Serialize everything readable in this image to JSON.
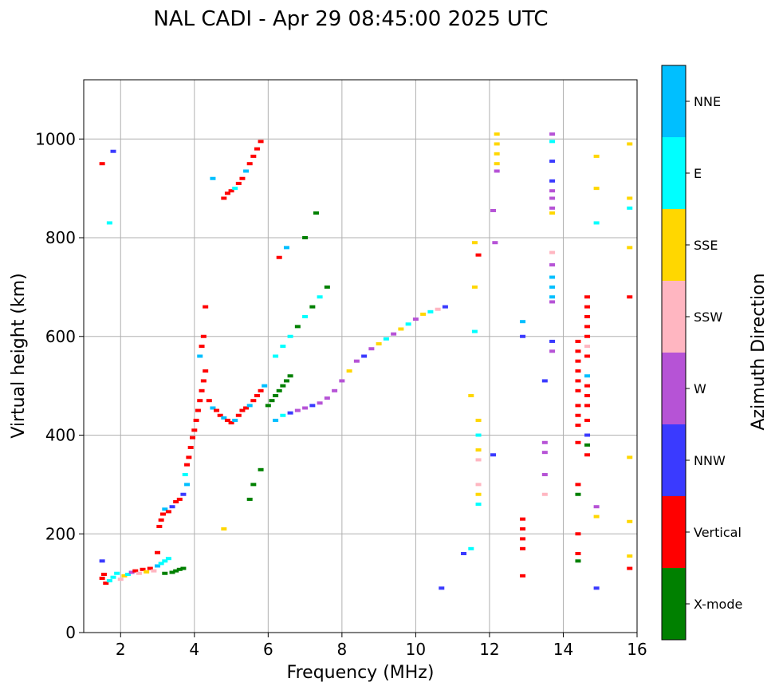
{
  "chart_data": {
    "type": "scatter",
    "title": "NAL CADI - Apr 29 08:45:00 2025 UTC",
    "xlabel": "Frequency (MHz)",
    "ylabel": "Virtual height (km)",
    "xlim": [
      1,
      16
    ],
    "ylim": [
      0,
      1120
    ],
    "xticks": [
      2,
      4,
      6,
      8,
      10,
      12,
      14,
      16
    ],
    "yticks": [
      0,
      200,
      400,
      600,
      800,
      1000
    ],
    "grid": true,
    "colorbar": {
      "label": "Azimuth Direction",
      "placement": "right",
      "categories": [
        {
          "name": "X-mode",
          "color": "#008000"
        },
        {
          "name": "Vertical",
          "color": "#ff0000"
        },
        {
          "name": "NNW",
          "color": "#3a3aff"
        },
        {
          "name": "W",
          "color": "#b653d6"
        },
        {
          "name": "SSW",
          "color": "#ffb6c1"
        },
        {
          "name": "SSE",
          "color": "#ffd700"
        },
        {
          "name": "E",
          "color": "#00ffff"
        },
        {
          "name": "NNE",
          "color": "#00bfff"
        }
      ]
    },
    "points": [
      [
        1.5,
        110,
        1
      ],
      [
        1.55,
        118,
        1
      ],
      [
        1.6,
        100,
        1
      ],
      [
        1.5,
        145,
        2
      ],
      [
        1.7,
        105,
        6
      ],
      [
        1.8,
        112,
        6
      ],
      [
        1.9,
        120,
        6
      ],
      [
        2.0,
        108,
        4
      ],
      [
        2.1,
        115,
        5
      ],
      [
        2.2,
        118,
        6
      ],
      [
        2.3,
        122,
        3
      ],
      [
        2.4,
        125,
        1
      ],
      [
        2.5,
        120,
        4
      ],
      [
        2.6,
        128,
        1
      ],
      [
        2.7,
        123,
        5
      ],
      [
        2.8,
        130,
        1
      ],
      [
        2.9,
        125,
        4
      ],
      [
        3.0,
        135,
        7
      ],
      [
        3.1,
        140,
        6
      ],
      [
        3.2,
        145,
        6
      ],
      [
        3.3,
        150,
        6
      ],
      [
        3.2,
        120,
        0
      ],
      [
        3.4,
        122,
        0
      ],
      [
        3.5,
        125,
        0
      ],
      [
        3.6,
        128,
        0
      ],
      [
        3.7,
        130,
        0
      ],
      [
        3.0,
        162,
        1
      ],
      [
        3.05,
        215,
        1
      ],
      [
        3.1,
        228,
        1
      ],
      [
        3.15,
        240,
        1
      ],
      [
        3.2,
        250,
        7
      ],
      [
        3.3,
        245,
        1
      ],
      [
        3.4,
        255,
        2
      ],
      [
        3.5,
        265,
        1
      ],
      [
        3.6,
        270,
        1
      ],
      [
        3.7,
        280,
        2
      ],
      [
        3.8,
        300,
        7
      ],
      [
        3.75,
        320,
        6
      ],
      [
        3.8,
        340,
        1
      ],
      [
        3.85,
        355,
        1
      ],
      [
        3.9,
        375,
        1
      ],
      [
        3.95,
        395,
        1
      ],
      [
        4.0,
        410,
        1
      ],
      [
        4.05,
        430,
        1
      ],
      [
        4.1,
        450,
        1
      ],
      [
        4.15,
        470,
        1
      ],
      [
        4.2,
        490,
        1
      ],
      [
        4.25,
        510,
        1
      ],
      [
        4.3,
        530,
        1
      ],
      [
        4.15,
        560,
        7
      ],
      [
        4.2,
        580,
        1
      ],
      [
        4.25,
        600,
        1
      ],
      [
        4.3,
        660,
        1
      ],
      [
        4.4,
        470,
        1
      ],
      [
        4.5,
        455,
        7
      ],
      [
        4.6,
        450,
        1
      ],
      [
        4.7,
        440,
        1
      ],
      [
        4.8,
        435,
        7
      ],
      [
        4.9,
        430,
        1
      ],
      [
        5.0,
        425,
        1
      ],
      [
        5.1,
        430,
        7
      ],
      [
        5.2,
        440,
        1
      ],
      [
        5.3,
        450,
        1
      ],
      [
        5.4,
        455,
        1
      ],
      [
        5.5,
        460,
        7
      ],
      [
        5.6,
        470,
        1
      ],
      [
        5.7,
        480,
        1
      ],
      [
        5.8,
        490,
        1
      ],
      [
        5.9,
        500,
        7
      ],
      [
        6.0,
        460,
        0
      ],
      [
        6.1,
        470,
        0
      ],
      [
        6.2,
        480,
        0
      ],
      [
        6.3,
        490,
        0
      ],
      [
        6.4,
        500,
        0
      ],
      [
        6.5,
        510,
        0
      ],
      [
        6.6,
        520,
        0
      ],
      [
        6.2,
        430,
        7
      ],
      [
        6.4,
        440,
        6
      ],
      [
        6.6,
        445,
        2
      ],
      [
        6.8,
        450,
        3
      ],
      [
        7.0,
        455,
        3
      ],
      [
        7.2,
        460,
        2
      ],
      [
        7.4,
        465,
        3
      ],
      [
        7.6,
        475,
        3
      ],
      [
        7.8,
        490,
        3
      ],
      [
        8.0,
        510,
        3
      ],
      [
        8.2,
        530,
        5
      ],
      [
        8.4,
        550,
        3
      ],
      [
        8.6,
        560,
        2
      ],
      [
        8.8,
        575,
        3
      ],
      [
        9.0,
        585,
        5
      ],
      [
        9.2,
        595,
        6
      ],
      [
        9.4,
        605,
        3
      ],
      [
        9.6,
        615,
        5
      ],
      [
        9.8,
        625,
        6
      ],
      [
        10.0,
        635,
        3
      ],
      [
        10.2,
        645,
        5
      ],
      [
        10.4,
        650,
        6
      ],
      [
        10.6,
        655,
        4
      ],
      [
        10.8,
        660,
        2
      ],
      [
        6.2,
        560,
        6
      ],
      [
        6.4,
        580,
        6
      ],
      [
        6.6,
        600,
        6
      ],
      [
        6.8,
        620,
        0
      ],
      [
        7.0,
        640,
        6
      ],
      [
        7.2,
        660,
        0
      ],
      [
        7.4,
        680,
        6
      ],
      [
        7.6,
        700,
        0
      ],
      [
        6.3,
        760,
        1
      ],
      [
        6.5,
        780,
        7
      ],
      [
        7.0,
        800,
        0
      ],
      [
        7.3,
        850,
        0
      ],
      [
        4.8,
        880,
        1
      ],
      [
        4.9,
        890,
        1
      ],
      [
        5.0,
        895,
        1
      ],
      [
        5.1,
        900,
        6
      ],
      [
        5.2,
        910,
        1
      ],
      [
        5.3,
        920,
        1
      ],
      [
        5.4,
        935,
        7
      ],
      [
        5.5,
        950,
        1
      ],
      [
        5.6,
        965,
        1
      ],
      [
        5.7,
        980,
        1
      ],
      [
        5.8,
        995,
        1
      ],
      [
        1.5,
        950,
        1
      ],
      [
        1.8,
        975,
        2
      ],
      [
        1.7,
        830,
        6
      ],
      [
        4.8,
        210,
        5
      ],
      [
        5.8,
        330,
        0
      ],
      [
        5.6,
        300,
        0
      ],
      [
        5.5,
        270,
        0
      ],
      [
        4.5,
        920,
        7
      ],
      [
        12.2,
        1010,
        5
      ],
      [
        12.2,
        990,
        5
      ],
      [
        12.2,
        970,
        5
      ],
      [
        12.2,
        950,
        5
      ],
      [
        12.2,
        935,
        3
      ],
      [
        12.1,
        855,
        3
      ],
      [
        12.15,
        790,
        3
      ],
      [
        11.6,
        790,
        5
      ],
      [
        11.7,
        765,
        1
      ],
      [
        11.6,
        700,
        5
      ],
      [
        11.6,
        610,
        6
      ],
      [
        11.5,
        480,
        5
      ],
      [
        11.7,
        430,
        5
      ],
      [
        11.7,
        400,
        6
      ],
      [
        11.7,
        370,
        5
      ],
      [
        11.7,
        350,
        4
      ],
      [
        11.7,
        300,
        4
      ],
      [
        11.7,
        280,
        5
      ],
      [
        11.7,
        260,
        6
      ],
      [
        12.1,
        360,
        2
      ],
      [
        11.5,
        170,
        6
      ],
      [
        11.3,
        160,
        2
      ],
      [
        10.7,
        90,
        2
      ],
      [
        13.7,
        1010,
        3
      ],
      [
        13.7,
        995,
        6
      ],
      [
        13.7,
        955,
        2
      ],
      [
        13.7,
        915,
        2
      ],
      [
        13.7,
        895,
        3
      ],
      [
        13.7,
        880,
        3
      ],
      [
        13.7,
        860,
        3
      ],
      [
        13.7,
        850,
        5
      ],
      [
        13.7,
        770,
        4
      ],
      [
        13.7,
        745,
        3
      ],
      [
        13.7,
        720,
        7
      ],
      [
        13.7,
        700,
        7
      ],
      [
        13.7,
        680,
        7
      ],
      [
        13.7,
        670,
        3
      ],
      [
        13.7,
        590,
        2
      ],
      [
        13.7,
        570,
        3
      ],
      [
        13.5,
        510,
        2
      ],
      [
        13.5,
        385,
        3
      ],
      [
        13.5,
        365,
        3
      ],
      [
        13.5,
        320,
        3
      ],
      [
        13.5,
        280,
        4
      ],
      [
        12.9,
        600,
        2
      ],
      [
        12.9,
        630,
        7
      ],
      [
        12.9,
        230,
        1
      ],
      [
        12.9,
        210,
        1
      ],
      [
        12.9,
        190,
        1
      ],
      [
        12.9,
        170,
        1
      ],
      [
        12.9,
        115,
        1
      ],
      [
        14.4,
        590,
        1
      ],
      [
        14.4,
        570,
        1
      ],
      [
        14.4,
        550,
        1
      ],
      [
        14.4,
        530,
        1
      ],
      [
        14.4,
        510,
        1
      ],
      [
        14.4,
        490,
        1
      ],
      [
        14.4,
        460,
        1
      ],
      [
        14.4,
        440,
        1
      ],
      [
        14.4,
        420,
        1
      ],
      [
        14.4,
        385,
        1
      ],
      [
        14.4,
        300,
        1
      ],
      [
        14.4,
        280,
        0
      ],
      [
        14.4,
        200,
        1
      ],
      [
        14.4,
        160,
        1
      ],
      [
        14.4,
        145,
        0
      ],
      [
        14.65,
        680,
        1
      ],
      [
        14.65,
        660,
        1
      ],
      [
        14.65,
        640,
        1
      ],
      [
        14.65,
        620,
        1
      ],
      [
        14.65,
        600,
        1
      ],
      [
        14.65,
        580,
        4
      ],
      [
        14.65,
        560,
        1
      ],
      [
        14.65,
        520,
        7
      ],
      [
        14.65,
        500,
        1
      ],
      [
        14.65,
        480,
        1
      ],
      [
        14.65,
        460,
        1
      ],
      [
        14.65,
        430,
        1
      ],
      [
        14.65,
        400,
        2
      ],
      [
        14.65,
        380,
        0
      ],
      [
        14.65,
        360,
        1
      ],
      [
        14.9,
        965,
        5
      ],
      [
        14.9,
        900,
        5
      ],
      [
        14.9,
        830,
        6
      ],
      [
        14.9,
        255,
        3
      ],
      [
        14.9,
        235,
        5
      ],
      [
        14.9,
        90,
        2
      ],
      [
        15.8,
        990,
        5
      ],
      [
        15.8,
        880,
        5
      ],
      [
        15.8,
        860,
        6
      ],
      [
        15.8,
        780,
        5
      ],
      [
        15.8,
        680,
        1
      ],
      [
        15.8,
        355,
        5
      ],
      [
        15.8,
        225,
        5
      ],
      [
        15.8,
        155,
        5
      ],
      [
        15.8,
        130,
        1
      ]
    ]
  }
}
